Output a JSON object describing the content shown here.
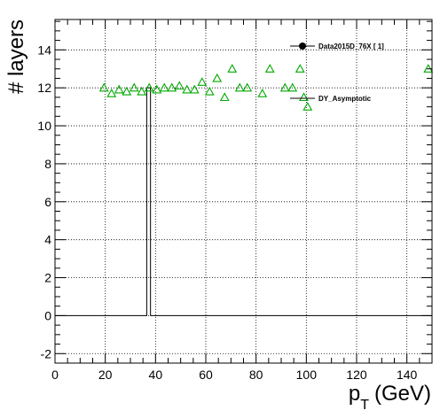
{
  "chart_data": {
    "type": "scatter",
    "xlabel_main": "p",
    "xlabel_sub": "T",
    "xlabel_unit": "(GeV)",
    "ylabel": "# layers",
    "xlim": [
      0,
      150
    ],
    "ylim": [
      -2.5,
      15.6
    ],
    "grid": true,
    "x_ticks": [
      0,
      20,
      40,
      60,
      80,
      100,
      120,
      140
    ],
    "y_ticks": [
      -2,
      0,
      2,
      4,
      6,
      8,
      10,
      12,
      14
    ],
    "legend_placement": "top-right",
    "series": [
      {
        "name": "Data2015D_76X [        1]",
        "marker": "filled-circle",
        "color": "#000000",
        "x": [],
        "y": [],
        "step_x": [
          0,
          36.5,
          36.5,
          38.0,
          38.0,
          39.5,
          39.5,
          150
        ],
        "step_y": [
          0,
          0,
          12,
          12,
          0,
          0,
          0,
          0
        ]
      },
      {
        "name": "DY_Asymptotic",
        "marker": "open-triangle",
        "color": "#00aa00",
        "x": [
          19.5,
          22.5,
          25.5,
          28.5,
          31.5,
          34.5,
          37.5,
          40.5,
          43.5,
          46.5,
          49.5,
          52.5,
          55.5,
          58.5,
          61.5,
          64.5,
          67.5,
          70.5,
          73.5,
          76.5,
          82.5,
          85.5,
          91.5,
          94.5,
          97.5,
          99.0,
          100.5,
          148.5
        ],
        "y": [
          12.0,
          11.7,
          11.9,
          11.8,
          12.0,
          11.8,
          12.0,
          11.9,
          12.0,
          12.0,
          12.1,
          11.9,
          11.9,
          12.3,
          11.8,
          12.5,
          11.5,
          13.0,
          12.0,
          12.0,
          11.7,
          13.0,
          12.0,
          12.0,
          13.0,
          11.5,
          11.0,
          13.0
        ]
      }
    ]
  }
}
